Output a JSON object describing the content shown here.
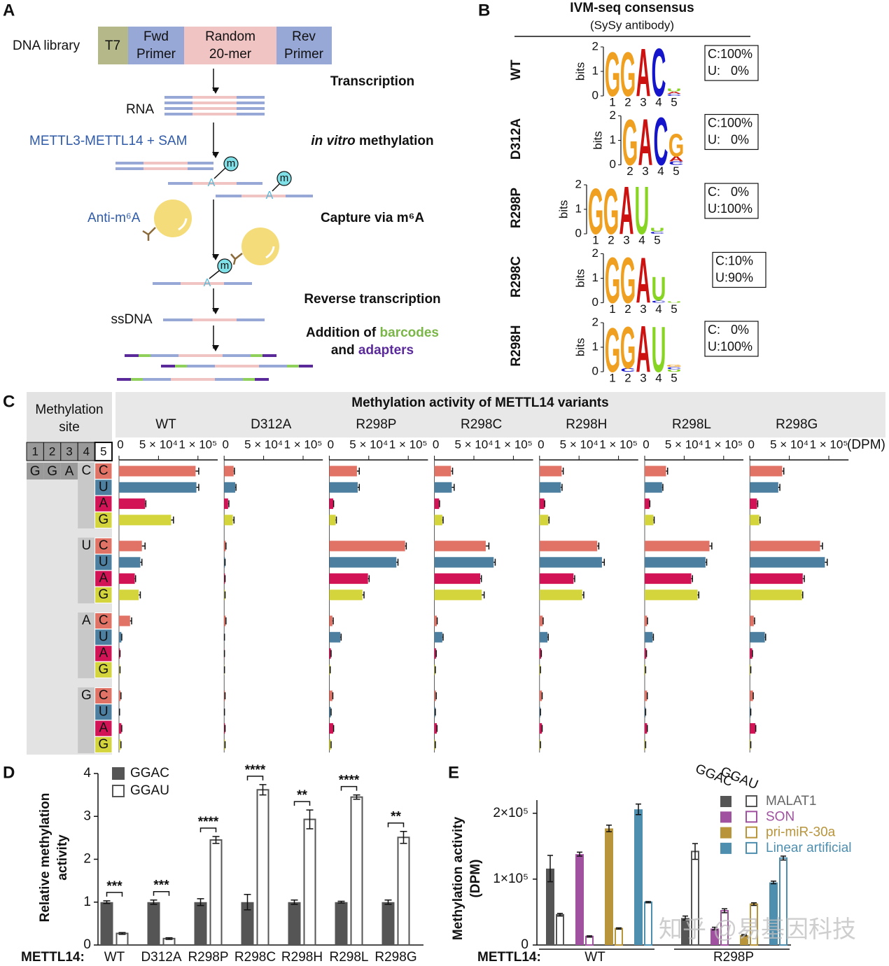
{
  "panel_a": {
    "label": "A",
    "library": "DNA library",
    "segments": {
      "t7": "T7",
      "fwd": [
        "Fwd",
        "Primer"
      ],
      "random": [
        "Random",
        "20-mer"
      ],
      "rev": [
        "Rev",
        "Primer"
      ]
    },
    "steps": {
      "transcription": "Transcription",
      "methylation": [
        "in vitro",
        " methylation"
      ],
      "capture": "Capture via m⁶A",
      "rt": "Reverse transcription",
      "addition": [
        [
          "Addition of ",
          "barcodes"
        ],
        [
          "and ",
          "adapters"
        ]
      ]
    },
    "labels": {
      "rna": "RNA",
      "enzyme": "METTL3-METTL14 + SAM",
      "antibody": "Anti-m⁶A",
      "ssdna": "ssDNA",
      "m": "m",
      "a": "A"
    }
  },
  "panel_b": {
    "label": "B",
    "title": "IVM-seq consensus",
    "subtitle": "(SySy antibody)",
    "y_label": "bits",
    "ylim": [
      0,
      2
    ],
    "yticks": [
      0,
      1,
      2
    ],
    "letter_colors": {
      "G": "#f0a020",
      "A": "#cc1111",
      "C": "#1515cc",
      "U": "#88d422"
    },
    "logos": [
      {
        "name": "WT",
        "xticks": [
          1,
          2,
          3,
          4,
          5
        ],
        "letters": [
          {
            "char": "G",
            "position": 1,
            "height": 1.85
          },
          {
            "char": "G",
            "position": 2,
            "height": 1.85
          },
          {
            "char": "A",
            "position": 3,
            "height": 2
          },
          {
            "char": "C",
            "position": 4,
            "height": 2
          },
          {
            "char": "C",
            "position": 5,
            "height": 0.08
          },
          {
            "char": "A",
            "position": 5,
            "height": 0.1
          },
          {
            "char": "U",
            "position": 5,
            "height": 0.12
          }
        ],
        "box": [
          "C:100%",
          "U:   0%"
        ]
      },
      {
        "name": "D312A",
        "xticks": [
          2,
          3,
          4,
          5
        ],
        "letters": [
          {
            "char": "G",
            "position": 2,
            "height": 1.9
          },
          {
            "char": "A",
            "position": 3,
            "height": 1.95
          },
          {
            "char": "C",
            "position": 4,
            "height": 2
          },
          {
            "char": "C",
            "position": 5,
            "height": 0.15
          },
          {
            "char": "A",
            "position": 5,
            "height": 0.2
          },
          {
            "char": "G",
            "position": 5,
            "height": 0.95
          }
        ],
        "box": [
          "C:100%",
          "U:   0%"
        ]
      },
      {
        "name": "R298P",
        "xticks": [
          1,
          2,
          3,
          4,
          5
        ],
        "letters": [
          {
            "char": "G",
            "position": 1,
            "height": 1.9
          },
          {
            "char": "G",
            "position": 2,
            "height": 1.9
          },
          {
            "char": "A",
            "position": 3,
            "height": 2
          },
          {
            "char": "U",
            "position": 4,
            "height": 2
          },
          {
            "char": "C",
            "position": 5,
            "height": 0.1
          },
          {
            "char": "U",
            "position": 5,
            "height": 0.15
          }
        ],
        "box": [
          "C:   0%",
          "U:100%"
        ]
      },
      {
        "name": "R298C",
        "xticks": [
          1,
          2,
          3,
          4,
          5
        ],
        "letters": [
          {
            "char": "G",
            "position": 1,
            "height": 1.9
          },
          {
            "char": "G",
            "position": 2,
            "height": 1.9
          },
          {
            "char": "A",
            "position": 3,
            "height": 1.9
          },
          {
            "char": "C",
            "position": 4,
            "height": 0.1
          },
          {
            "char": "U",
            "position": 4,
            "height": 1
          },
          {
            "char": "U",
            "position": 5,
            "height": 0.05
          }
        ],
        "box": [
          "C:10%",
          "U:90%"
        ]
      },
      {
        "name": "R298H",
        "xticks": [
          1,
          2,
          3,
          4,
          5
        ],
        "letters": [
          {
            "char": "G",
            "position": 1,
            "height": 1.85
          },
          {
            "char": "C",
            "position": 2,
            "height": 0.15
          },
          {
            "char": "G",
            "position": 2,
            "height": 1.75
          },
          {
            "char": "A",
            "position": 3,
            "height": 1.95
          },
          {
            "char": "U",
            "position": 4,
            "height": 1.9
          },
          {
            "char": "U",
            "position": 5,
            "height": 0.1
          },
          {
            "char": "C",
            "position": 5,
            "height": 0.1
          },
          {
            "char": "G",
            "position": 5,
            "height": 0.1
          }
        ],
        "box": [
          "C:   0%",
          "U:100%"
        ]
      }
    ]
  },
  "chart_data": [
    {
      "type": "bar",
      "orientation": "horizontal",
      "panel_label": "C",
      "title": "Methylation activity of METTL14 variants",
      "x_unit": "(DPM)",
      "xlim": [
        0,
        125000
      ],
      "xticks": [
        0,
        {
          "value": 50000,
          "label": "5 × 10⁴"
        },
        {
          "value": 100000,
          "label": "1 × 10⁵"
        }
      ],
      "site_table": {
        "title": [
          "Methylation",
          "site"
        ],
        "positions": [
          1,
          2,
          3,
          4,
          5
        ],
        "fixed": [
          "G",
          "G",
          "A"
        ],
        "pos4": [
          "C",
          "U",
          "A",
          "G"
        ],
        "pos5": [
          "C",
          "U",
          "A",
          "G"
        ],
        "pos5_colors": [
          "#e07366",
          "#4d7fa0",
          "#d21457",
          "#d4d43c"
        ]
      },
      "series": [
        {
          "name": "WT",
          "values": [
            97000,
            98000,
            33000,
            66000,
            29000,
            27000,
            20000,
            25000,
            14000,
            3000,
            1000,
            1000,
            2000,
            500,
            3000,
            2000
          ],
          "errors": [
            4000,
            3000,
            1000,
            3000,
            4000,
            2000,
            1000,
            2000,
            2000,
            500,
            300,
            300,
            500,
            200,
            500,
            500
          ]
        },
        {
          "name": "D312A",
          "values": [
            12000,
            14000,
            5000,
            11000,
            2000,
            1000,
            1000,
            1000,
            2000,
            300,
            300,
            300,
            1000,
            300,
            1000,
            1000
          ],
          "errors": [
            1000,
            1000,
            1000,
            1500,
            300,
            200,
            200,
            200,
            300,
            100,
            100,
            100,
            200,
            100,
            200,
            200
          ]
        },
        {
          "name": "R298P",
          "values": [
            35000,
            36000,
            5000,
            8000,
            96000,
            85000,
            49000,
            42000,
            4000,
            14000,
            2000,
            1000,
            4000,
            2000,
            5000,
            2000
          ],
          "errors": [
            3000,
            2000,
            500,
            1000,
            1500,
            2000,
            1500,
            2000,
            1000,
            1000,
            300,
            200,
            500,
            300,
            500,
            300
          ]
        },
        {
          "name": "R298C",
          "values": [
            21000,
            22000,
            6000,
            10000,
            65000,
            75000,
            58000,
            60000,
            3000,
            10000,
            2000,
            1000,
            2000,
            1000,
            3000,
            1000
          ],
          "errors": [
            2000,
            3000,
            500,
            1000,
            4000,
            2000,
            1500,
            3000,
            500,
            1000,
            300,
            200,
            300,
            200,
            300,
            200
          ]
        },
        {
          "name": "R298H",
          "values": [
            28000,
            27000,
            6000,
            11000,
            73000,
            79000,
            43000,
            54000,
            4000,
            10000,
            2000,
            1000,
            3000,
            1000,
            3000,
            1000
          ],
          "errors": [
            2000,
            1500,
            500,
            1000,
            2000,
            3000,
            1500,
            2000,
            500,
            1000,
            300,
            200,
            300,
            200,
            300,
            200
          ]
        },
        {
          "name": "R298L",
          "values": [
            27000,
            22000,
            6000,
            11000,
            82000,
            77000,
            59000,
            67000,
            3000,
            10000,
            2000,
            1000,
            3000,
            1000,
            3000,
            1000
          ],
          "errors": [
            2000,
            1000,
            500,
            1000,
            3000,
            1500,
            1500,
            1500,
            500,
            1000,
            300,
            200,
            300,
            200,
            300,
            200
          ]
        },
        {
          "name": "R298G",
          "values": [
            41000,
            36000,
            9000,
            12000,
            89000,
            95000,
            67000,
            66000,
            5000,
            19000,
            3000,
            1000,
            4000,
            1000,
            7000,
            1000
          ],
          "errors": [
            2000,
            2000,
            1000,
            1000,
            3000,
            3000,
            2000,
            1000,
            1000,
            1000,
            300,
            200,
            300,
            200,
            500,
            200
          ]
        }
      ]
    },
    {
      "type": "bar",
      "panel_label": "D",
      "y_label": [
        "Relative methylation",
        "activity"
      ],
      "xlabel": "METTL14:",
      "categories": [
        "WT",
        "D312A",
        "R298P",
        "R298C",
        "R298H",
        "R298L",
        "R298G"
      ],
      "ylim": [
        0,
        4
      ],
      "yticks": [
        0,
        1,
        2,
        3,
        4
      ],
      "series": [
        {
          "name": "GGAC",
          "color": "#555555",
          "style": "filled",
          "values": [
            1,
            1,
            1,
            1,
            1,
            1,
            1
          ],
          "errors": [
            0.03,
            0.05,
            0.08,
            0.18,
            0.05,
            0.02,
            0.05
          ]
        },
        {
          "name": "GGAU",
          "color": "#555555",
          "style": "open",
          "values": [
            0.27,
            0.15,
            2.45,
            3.62,
            2.93,
            3.45,
            2.51
          ],
          "errors": [
            0.02,
            0.02,
            0.08,
            0.12,
            0.22,
            0.05,
            0.14
          ]
        }
      ],
      "significance": [
        "***",
        "***",
        "****",
        "****",
        "**",
        "****",
        "**"
      ]
    },
    {
      "type": "bar",
      "panel_label": "E",
      "y_label": [
        "Methylation activity",
        "(DPM)"
      ],
      "xlabel": "METTL14:",
      "categories": [
        "WT",
        "R298P"
      ],
      "pattern_labels": [
        "GGAC",
        "GGAU"
      ],
      "ylim": [
        0,
        220000
      ],
      "yticks": [
        0,
        {
          "value": 100000,
          "label": "1×10⁵"
        },
        {
          "value": 200000,
          "label": "2×10⁵"
        }
      ],
      "series": [
        {
          "name": "MALAT1",
          "color": "#555555",
          "values": [
            116000,
            41000
          ],
          "errors": [
            20000,
            3000
          ],
          "open_values": [
            46000,
            142000
          ],
          "open_errors": [
            2000,
            12000
          ]
        },
        {
          "name": "SON",
          "color": "#a052a0",
          "values": [
            138000,
            25000
          ],
          "errors": [
            3000,
            2000
          ],
          "open_values": [
            13000,
            52000
          ],
          "open_errors": [
            1000,
            3000
          ]
        },
        {
          "name": "pri-miR-30a",
          "color": "#b8943a",
          "values": [
            177000,
            15000
          ],
          "errors": [
            5000,
            1000
          ],
          "open_values": [
            25000,
            62000
          ],
          "open_errors": [
            1000,
            2000
          ]
        },
        {
          "name": "Linear artificial",
          "color": "#4e8fb0",
          "values": [
            206000,
            95000
          ],
          "errors": [
            8000,
            2000
          ],
          "open_values": [
            65000,
            132000
          ],
          "open_errors": [
            1000,
            3000
          ]
        }
      ],
      "watermark": "知乎 @易基因科技"
    }
  ]
}
